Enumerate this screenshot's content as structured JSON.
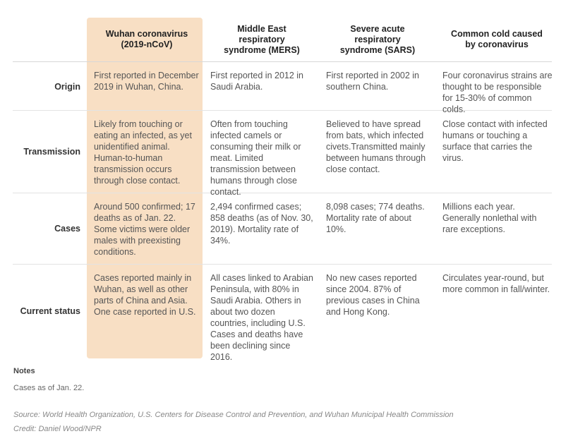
{
  "columns": [
    "Wuhan coronavirus\n(2019-nCoV)",
    "Middle East\nrespiratory\nsyndrome (MERS)",
    "Severe acute\nrespiratory\nsyndrome (SARS)",
    "Common cold caused\nby coronavirus"
  ],
  "rows": [
    {
      "label": "Origin",
      "cells": [
        "First reported in December 2019 in Wuhan, China.",
        "First reported in 2012 in Saudi Arabia.",
        "First reported in 2002 in southern China.",
        "Four coronavirus strains are thought to be responsible for 15-30% of common colds."
      ]
    },
    {
      "label": "Transmission",
      "cells": [
        "Likely from touching or eating an infected, as yet unidentified animal. Human-to-human transmission occurs through close contact.",
        "Often from touching infected camels or consuming their milk or meat. Limited transmission between humans through close contact.",
        "Believed to have spread from bats, which infected civets.Transmitted mainly between humans through close contact.",
        "Close contact with infected humans or touching a surface that carries the virus."
      ]
    },
    {
      "label": "Cases",
      "cells": [
        "Around 500 confirmed; 17 deaths as of Jan. 22. Some victims were older males with preexisting conditions.",
        "2,494 confirmed cases; 858 deaths (as of Nov. 30, 2019). Mortality rate of 34%.",
        "8,098 cases; 774 deaths. Mortality rate of about 10%.",
        "Millions each year. Generally nonlethal with rare exceptions."
      ]
    },
    {
      "label": "Current status",
      "cells": [
        "Cases reported mainly in Wuhan, as well as other parts of China and Asia. One case reported in U.S.",
        "All cases linked to Arabian Peninsula, with 80% in Saudi Arabia. Others in about two dozen countries, including U.S. Cases and deaths have been declining since 2016.",
        "No new cases reported since 2004. 87% of previous cases in China and Hong Kong.",
        "Circulates year-round, but more common in fall/winter."
      ]
    }
  ],
  "notes": {
    "title": "Notes",
    "text": "Cases as of Jan. 22."
  },
  "source": "Source: World Health Organization, U.S. Centers for Disease Control and Prevention, and Wuhan Municipal Health Commission",
  "credit": "Credit: Daniel Wood/NPR",
  "colors": {
    "highlight": "#f8dfc4"
  }
}
